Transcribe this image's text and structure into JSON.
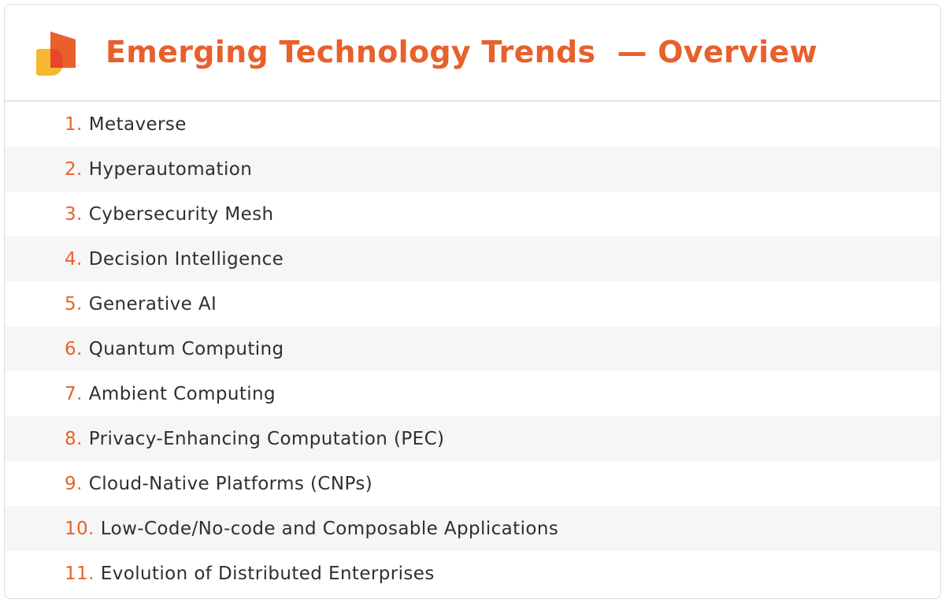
{
  "header": {
    "title": "Emerging Technology Trends  — Overview"
  },
  "items": [
    {
      "number": "1.",
      "label": "Metaverse"
    },
    {
      "number": "2.",
      "label": "Hyperautomation"
    },
    {
      "number": "3.",
      "label": "Cybersecurity Mesh"
    },
    {
      "number": "4.",
      "label": "Decision Intelligence"
    },
    {
      "number": "5.",
      "label": "Generative AI"
    },
    {
      "number": "6.",
      "label": "Quantum Computing"
    },
    {
      "number": "7.",
      "label": "Ambient Computing"
    },
    {
      "number": "8.",
      "label": "Privacy-Enhancing Computation (PEC)"
    },
    {
      "number": "9.",
      "label": "Cloud-Native Platforms (CNPs)"
    },
    {
      "number": "10.",
      "label": "Low-Code/No-code and Composable Applications"
    },
    {
      "number": "11.",
      "label": "Evolution of Distributed Enterprises"
    }
  ]
}
